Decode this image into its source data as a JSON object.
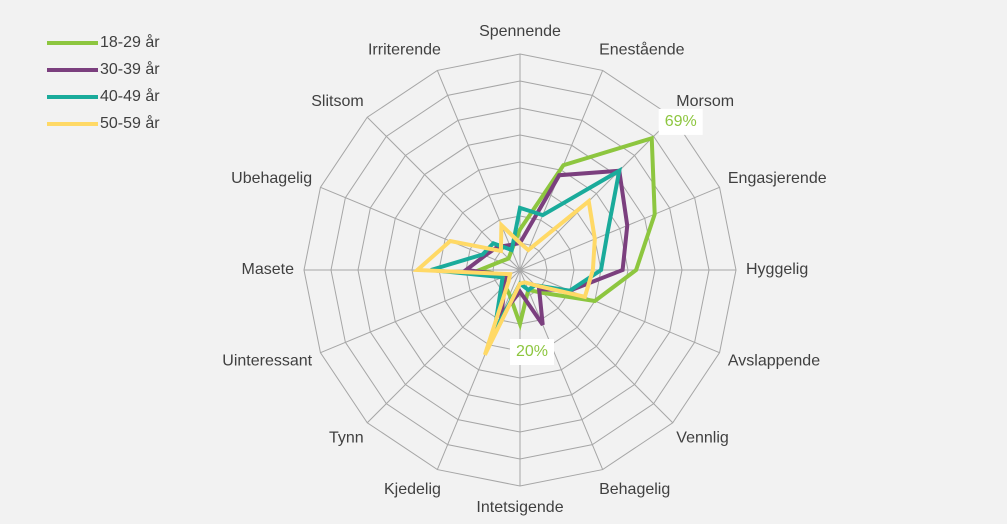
{
  "chart_data": {
    "type": "radar",
    "categories": [
      "Spennende",
      "Enestående",
      "Morsom",
      "Engasjerende",
      "Hyggelig",
      "Avslappende",
      "Vennlig",
      "Behagelig",
      "Intetsigende",
      "Kjedelig",
      "Tynn",
      "Uinteressant",
      "Masete",
      "Ubehagelig",
      "Slitsom",
      "Irriterende"
    ],
    "series": [
      {
        "name": "18-29 år",
        "color": "#8dc63f",
        "values": [
          15,
          42,
          69,
          54,
          43,
          30,
          12,
          8,
          20,
          10,
          8,
          6,
          15,
          8,
          6,
          8
        ],
        "value_labels": [
          null,
          null,
          "69%",
          null,
          null,
          null,
          null,
          null,
          "20%",
          null,
          null,
          null,
          null,
          null,
          null,
          null
        ]
      },
      {
        "name": "30-39 år",
        "color": "#7b3f7e",
        "values": [
          10,
          38,
          52,
          43,
          38,
          20,
          10,
          22,
          8,
          18,
          8,
          5,
          20,
          14,
          12,
          10
        ]
      },
      {
        "name": "40-49 år",
        "color": "#1aab9b",
        "values": [
          23,
          22,
          52,
          35,
          30,
          20,
          8,
          8,
          5,
          25,
          10,
          7,
          33,
          15,
          14,
          8
        ]
      },
      {
        "name": "50-59 år",
        "color": "#ffd966",
        "values": [
          10,
          8,
          36,
          30,
          27,
          26,
          8,
          5,
          5,
          34,
          6,
          4,
          38,
          28,
          10,
          18
        ]
      }
    ],
    "ylim": [
      0,
      80
    ],
    "yticks": [
      0,
      10,
      20,
      30,
      40,
      50,
      60,
      70,
      80
    ],
    "grid": true,
    "legend": "top-left"
  }
}
